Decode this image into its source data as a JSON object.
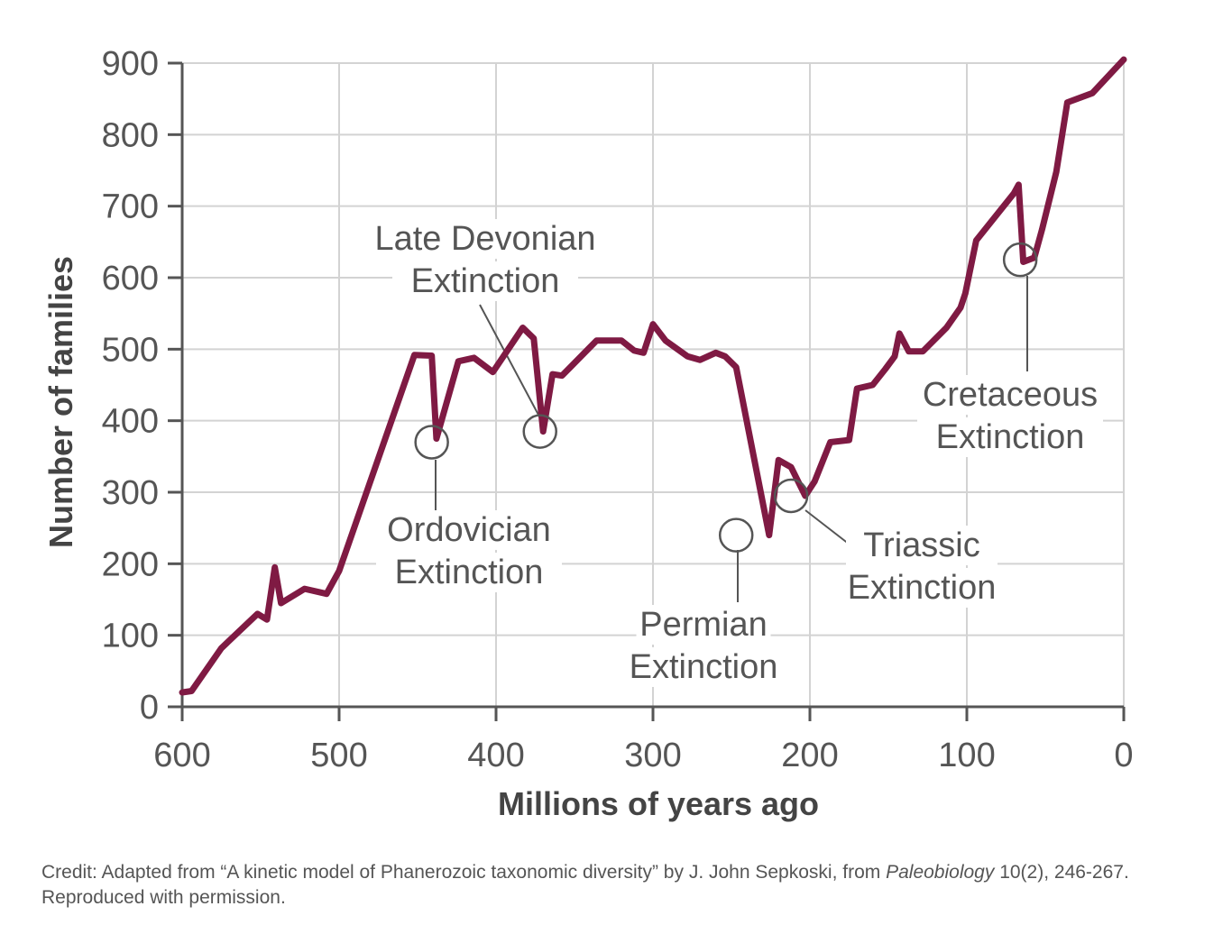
{
  "chart_data": {
    "type": "line",
    "title": "",
    "xlabel": "Millions of years ago",
    "ylabel": "Number of families",
    "xlim": [
      600,
      0
    ],
    "ylim": [
      0,
      900
    ],
    "x_ticks": [
      "600",
      "500",
      "400",
      "300",
      "200",
      "100",
      "0"
    ],
    "y_ticks": [
      "0",
      "100",
      "200",
      "300",
      "400",
      "500",
      "600",
      "700",
      "800",
      "900"
    ],
    "grid": true,
    "line_color": "#7f1a43",
    "series": [
      {
        "x": [
          600,
          594,
          575,
          552,
          546,
          541,
          537,
          522,
          508,
          500,
          452,
          441,
          438,
          424,
          414,
          402,
          383,
          376,
          370,
          364,
          358,
          336,
          320,
          312,
          306,
          300,
          292,
          278,
          270,
          260,
          254,
          247,
          226,
          220,
          212,
          203,
          197,
          187,
          175,
          170,
          160,
          152,
          146,
          143,
          137,
          128,
          113,
          104,
          101,
          94,
          70,
          67,
          64,
          57,
          52,
          43,
          36,
          20,
          0
        ],
        "y": [
          20,
          22,
          82,
          130,
          122,
          195,
          145,
          165,
          158,
          190,
          492,
          491,
          375,
          483,
          488,
          468,
          530,
          515,
          385,
          465,
          463,
          512,
          512,
          498,
          495,
          535,
          512,
          490,
          485,
          495,
          490,
          475,
          240,
          345,
          335,
          295,
          315,
          370,
          373,
          445,
          450,
          472,
          490,
          522,
          497,
          497,
          530,
          558,
          578,
          652,
          718,
          730,
          622,
          628,
          668,
          748,
          845,
          858,
          905
        ]
      }
    ],
    "annotations": [
      {
        "label_lines": [
          "Ordovician",
          "Extinction"
        ],
        "x": 441,
        "y": 370
      },
      {
        "label_lines": [
          "Late Devonian",
          "Extinction"
        ],
        "x": 372,
        "y": 385
      },
      {
        "label_lines": [
          "Permian",
          "Extinction"
        ],
        "x": 247,
        "y": 240
      },
      {
        "label_lines": [
          "Triassic",
          "Extinction"
        ],
        "x": 212,
        "y": 295
      },
      {
        "label_lines": [
          "Cretaceous",
          "Extinction"
        ],
        "x": 66,
        "y": 625
      }
    ]
  },
  "credit": {
    "prefix": "Credit: Adapted from “A kinetic model of Phanerozoic taxonomic diversity” by J. John Sepkoski, from ",
    "journal": "Paleobiology",
    "suffix": " 10(2), 246-267. Reproduced with permission."
  }
}
